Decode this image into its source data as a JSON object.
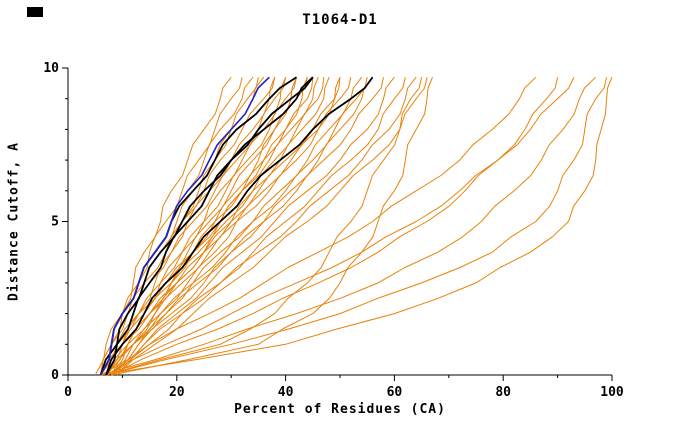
{
  "chart_data": {
    "type": "line",
    "title": "T1064-D1",
    "xlabel": "Percent of Residues (CA)",
    "ylabel": "Distance Cutoff, A",
    "xlim": [
      0,
      100
    ],
    "ylim": [
      0,
      10
    ],
    "grid": "off",
    "legend": "none",
    "x_ticks_major": [
      0,
      20,
      40,
      60,
      80,
      100
    ],
    "x_ticks_minor": [
      10,
      30,
      50,
      70,
      90
    ],
    "y_ticks_major": [
      0,
      5,
      10
    ],
    "y_ticks_minor": [
      1,
      2,
      3,
      4,
      6,
      7,
      8,
      9
    ],
    "colors": {
      "orange": "#e8820c",
      "black": "#000000",
      "blue": "#2222cc"
    },
    "group_meaning": {
      "orange": "predicted-models",
      "black": "reference-models",
      "blue": "highlighted-model"
    },
    "y_grid": [
      0,
      1,
      2,
      3,
      4,
      5,
      6,
      7,
      8,
      9,
      9.7
    ],
    "series": [
      {
        "group": "orange",
        "x": [
          6,
          8,
          10,
          12,
          14,
          17,
          19,
          22,
          25,
          28,
          30
        ]
      },
      {
        "group": "orange",
        "x": [
          6,
          8,
          10,
          13,
          15,
          18,
          21,
          24,
          27,
          30,
          32
        ]
      },
      {
        "group": "orange",
        "x": [
          5,
          7,
          10,
          13,
          16,
          19,
          22,
          25,
          28,
          32,
          34
        ]
      },
      {
        "group": "orange",
        "x": [
          6,
          9,
          12,
          15,
          18,
          21,
          24,
          27,
          30,
          33,
          35
        ]
      },
      {
        "group": "orange",
        "x": [
          7,
          9,
          11,
          14,
          17,
          20,
          23,
          27,
          30,
          34,
          36
        ]
      },
      {
        "group": "orange",
        "x": [
          6,
          8,
          11,
          14,
          18,
          21,
          25,
          28,
          32,
          36,
          38
        ]
      },
      {
        "group": "orange",
        "x": [
          7,
          10,
          13,
          16,
          19,
          22,
          26,
          30,
          34,
          37,
          38
        ]
      },
      {
        "group": "orange",
        "x": [
          6,
          9,
          12,
          15,
          19,
          23,
          27,
          31,
          35,
          38,
          40
        ]
      },
      {
        "group": "orange",
        "x": [
          7,
          10,
          14,
          17,
          21,
          25,
          28,
          32,
          36,
          39,
          40
        ]
      },
      {
        "group": "orange",
        "x": [
          6,
          9,
          13,
          17,
          21,
          25,
          29,
          33,
          37,
          40,
          42
        ]
      },
      {
        "group": "orange",
        "x": [
          7,
          11,
          15,
          19,
          23,
          27,
          31,
          35,
          38,
          41,
          42
        ]
      },
      {
        "group": "orange",
        "x": [
          6,
          10,
          14,
          18,
          22,
          26,
          30,
          34,
          38,
          42,
          44
        ]
      },
      {
        "group": "orange",
        "x": [
          8,
          11,
          15,
          19,
          24,
          28,
          32,
          36,
          40,
          43,
          44
        ]
      },
      {
        "group": "orange",
        "x": [
          7,
          10,
          14,
          19,
          23,
          27,
          32,
          36,
          40,
          44,
          45
        ]
      },
      {
        "group": "orange",
        "x": [
          6,
          9,
          13,
          18,
          23,
          28,
          32,
          37,
          41,
          45,
          46
        ]
      },
      {
        "group": "orange",
        "x": [
          8,
          12,
          16,
          20,
          25,
          29,
          34,
          38,
          42,
          46,
          47
        ]
      },
      {
        "group": "orange",
        "x": [
          7,
          11,
          15,
          20,
          25,
          30,
          34,
          39,
          43,
          47,
          48
        ]
      },
      {
        "group": "orange",
        "x": [
          6,
          10,
          15,
          20,
          25,
          30,
          35,
          40,
          45,
          49,
          50
        ]
      },
      {
        "group": "orange",
        "x": [
          8,
          12,
          17,
          22,
          27,
          31,
          36,
          41,
          46,
          49,
          50
        ]
      },
      {
        "group": "orange",
        "x": [
          7,
          11,
          16,
          21,
          26,
          31,
          37,
          42,
          46,
          50,
          52
        ]
      },
      {
        "group": "orange",
        "x": [
          8,
          13,
          18,
          23,
          28,
          34,
          39,
          44,
          48,
          52,
          54
        ]
      },
      {
        "group": "orange",
        "x": [
          7,
          12,
          17,
          23,
          29,
          34,
          40,
          45,
          49,
          53,
          55
        ]
      },
      {
        "group": "orange",
        "x": [
          8,
          13,
          19,
          25,
          30,
          36,
          41,
          46,
          50,
          54,
          56
        ]
      },
      {
        "group": "orange",
        "x": [
          7,
          12,
          18,
          24,
          30,
          36,
          42,
          47,
          52,
          56,
          58
        ]
      },
      {
        "group": "orange",
        "x": [
          8,
          14,
          20,
          26,
          32,
          38,
          44,
          50,
          55,
          58,
          60
        ]
      },
      {
        "group": "orange",
        "x": [
          9,
          15,
          21,
          28,
          34,
          40,
          46,
          52,
          57,
          60,
          62
        ]
      },
      {
        "group": "orange",
        "x": [
          8,
          14,
          21,
          28,
          35,
          42,
          48,
          54,
          59,
          62,
          64
        ]
      },
      {
        "group": "orange",
        "x": [
          9,
          16,
          23,
          30,
          37,
          44,
          50,
          56,
          61,
          64,
          66
        ]
      },
      {
        "group": "orange",
        "x": [
          6,
          40,
          60,
          75,
          85,
          92,
          95,
          97,
          98,
          99,
          100
        ]
      },
      {
        "group": "orange",
        "x": [
          7,
          30,
          50,
          65,
          78,
          86,
          90,
          93,
          95,
          97,
          99
        ]
      },
      {
        "group": "orange",
        "x": [
          6,
          25,
          42,
          57,
          68,
          76,
          82,
          87,
          91,
          94,
          97
        ]
      },
      {
        "group": "orange",
        "x": [
          7,
          18,
          30,
          42,
          54,
          64,
          72,
          79,
          85,
          90,
          93
        ]
      },
      {
        "group": "orange",
        "x": [
          6,
          15,
          26,
          36,
          46,
          56,
          64,
          72,
          78,
          83,
          86
        ]
      },
      {
        "group": "orange",
        "x": [
          8,
          20,
          34,
          46,
          57,
          66,
          73,
          79,
          84,
          88,
          90
        ]
      },
      {
        "group": "orange",
        "x": [
          8,
          35,
          45,
          50,
          54,
          57,
          60,
          62,
          64,
          66,
          67
        ]
      },
      {
        "group": "orange",
        "x": [
          7,
          28,
          38,
          44,
          48,
          52,
          55,
          58,
          61,
          63,
          65
        ]
      },
      {
        "group": "black",
        "x": [
          6,
          8,
          10,
          13,
          16,
          19,
          23,
          27,
          31,
          37,
          42
        ]
      },
      {
        "group": "black",
        "x": [
          6,
          9,
          12,
          15,
          18,
          22,
          26,
          30,
          35,
          41,
          45
        ]
      },
      {
        "group": "black",
        "x": [
          7,
          9,
          11,
          14,
          17,
          21,
          25,
          30,
          36,
          42,
          45
        ]
      },
      {
        "group": "black",
        "x": [
          7,
          10,
          14,
          18,
          23,
          28,
          33,
          39,
          45,
          52,
          56
        ]
      },
      {
        "group": "blue",
        "x": [
          6,
          8,
          10,
          13,
          16,
          19,
          22,
          26,
          30,
          34,
          37
        ]
      }
    ]
  }
}
